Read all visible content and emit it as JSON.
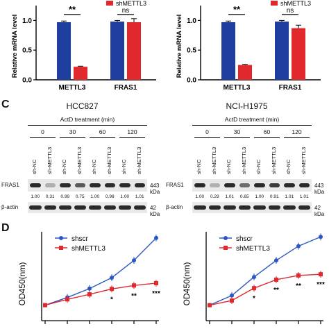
{
  "colors": {
    "blue": "#1f3f9e",
    "red": "#e0282d",
    "band": "#2a2a2a",
    "line_blue": "#2b57c4",
    "line_red": "#e0282d"
  },
  "bar_panels": [
    {
      "ylabel": "Relative mRNA level",
      "legend": [
        "shMETTL3"
      ],
      "yticks": [
        "0.0",
        "0.5",
        "1.0"
      ],
      "ns_label": "ns",
      "sig_label": "**"
    },
    {
      "ylabel": "Relative mRNA level",
      "legend": [
        "shMETTL3"
      ],
      "yticks": [
        "0.0",
        "0.5",
        "1.0"
      ],
      "ns_label": "ns",
      "sig_label": "**"
    }
  ],
  "panel_letters": {
    "c": "C",
    "d": "D"
  },
  "blots": [
    {
      "title": "HCC827",
      "treatment": "ActD treatment (min)",
      "times": [
        "0",
        "30",
        "60",
        "120"
      ],
      "lanes": [
        "sh-NC",
        "sh-METTL3",
        "sh-NC",
        "sh-METTL3",
        "sh-NC",
        "sh-METTL3",
        "sh-NC",
        "sh-METTL3"
      ],
      "row1": "FRAS1",
      "row1_kda": "443 kDa",
      "quant": [
        "1.00",
        "0.31",
        "0.99",
        "0.75",
        "1.00",
        "0.98",
        "1.00",
        "1.01"
      ],
      "row2": "β-actin",
      "row2_kda": "42 kDa"
    },
    {
      "title": "NCI-H1975",
      "treatment": "ActD treatment (min)",
      "times": [
        "0",
        "30",
        "60",
        "120"
      ],
      "lanes": [
        "sh-NC",
        "sh-METTL3",
        "sh-NC",
        "sh-METTL3",
        "sh-NC",
        "sh-METTL3",
        "sh-NC",
        "sh-METTL3"
      ],
      "row1": "FRAS1",
      "row1_kda": "443 kDa",
      "quant": [
        "1.00",
        "0.29",
        "1.01",
        "0.65",
        "1.00",
        "0.91",
        "1.01",
        "1.01"
      ],
      "row2": "β-actin",
      "row2_kda": "42 kDa"
    }
  ],
  "chart_data": [
    {
      "type": "bar",
      "categories": [
        "METTL3",
        "FRAS1"
      ],
      "series": [
        {
          "values": [
            0.97,
            0.98
          ]
        },
        {
          "name": "shMETTL3",
          "values": [
            0.22,
            0.97
          ]
        }
      ],
      "errors": [
        [
          0.02,
          0.02
        ],
        [
          0.01,
          0.06
        ]
      ],
      "ylabel": "Relative mRNA level",
      "ylim": [
        0,
        1.25
      ],
      "annotations": [
        "**",
        "ns"
      ]
    },
    {
      "type": "bar",
      "categories": [
        "METTL3",
        "FRAS1"
      ],
      "series": [
        {
          "values": [
            0.97,
            0.98
          ]
        },
        {
          "name": "shMETTL3",
          "values": [
            0.25,
            0.87
          ]
        }
      ],
      "errors": [
        [
          0.02,
          0.02
        ],
        [
          0.01,
          0.05
        ]
      ],
      "ylabel": "Relative mRNA level",
      "ylim": [
        0,
        1.25
      ],
      "annotations": [
        "**",
        "ns"
      ]
    },
    {
      "type": "line",
      "ylabel": "OD450(nm)",
      "x": [
        0,
        1,
        2,
        3,
        4,
        5
      ],
      "series": [
        {
          "name": "shscr",
          "values": [
            0.4,
            0.6,
            0.83,
            1.11,
            1.56,
            2.14
          ]
        },
        {
          "name": "shMETTL3",
          "values": [
            0.4,
            0.55,
            0.68,
            0.82,
            0.91,
            0.97
          ]
        }
      ],
      "sig": [
        "",
        "",
        "",
        "*",
        "**",
        "***"
      ],
      "ylim": [
        0.25,
        2.3
      ]
    },
    {
      "type": "line",
      "ylabel": "OD450(nm)",
      "x": [
        0,
        1,
        2,
        3,
        4,
        5
      ],
      "series": [
        {
          "name": "shscr",
          "values": [
            0.4,
            0.65,
            1.13,
            1.56,
            1.93,
            2.17
          ]
        },
        {
          "name": "shMETTL3",
          "values": [
            0.4,
            0.52,
            0.84,
            1.06,
            1.17,
            1.2
          ]
        }
      ],
      "sig": [
        "",
        "",
        "*",
        "**",
        "**",
        "***"
      ],
      "ylim": [
        0.25,
        2.3
      ]
    }
  ]
}
